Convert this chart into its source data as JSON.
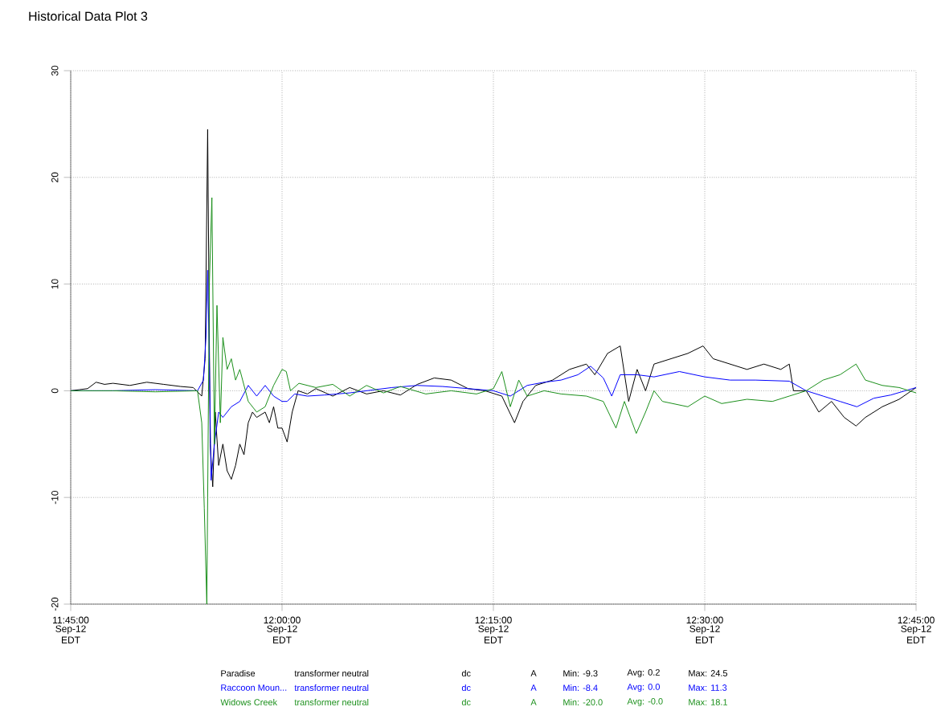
{
  "chart_data": {
    "type": "line",
    "title": "Historical Data Plot 3",
    "xlim": [
      11.75,
      12.75
    ],
    "ylim": [
      -20,
      30
    ],
    "xticks": [
      {
        "value": 11.75,
        "label": "11:45:00"
      },
      {
        "value": 12.0,
        "label": "12:00:00"
      },
      {
        "value": 12.25,
        "label": "12:15:00"
      },
      {
        "value": 12.5,
        "label": "12:30:00"
      },
      {
        "value": 12.75,
        "label": "12:45:00"
      }
    ],
    "yticks": [
      -20,
      -10,
      0,
      10,
      20,
      30
    ],
    "grid": true,
    "legend": "bottom",
    "line_style": "solid",
    "series": [
      {
        "name": "Paradise",
        "color": "#000000",
        "x": [
          11.75,
          11.76,
          11.77,
          11.78,
          11.79,
          11.8,
          11.82,
          11.84,
          11.86,
          11.88,
          11.895,
          11.905,
          11.909,
          11.912,
          11.915,
          11.918,
          11.921,
          11.925,
          11.93,
          11.935,
          11.94,
          11.945,
          11.95,
          11.955,
          11.96,
          11.965,
          11.97,
          11.98,
          11.985,
          11.99,
          11.995,
          12.0,
          12.006,
          12.012,
          12.019,
          12.03,
          12.04,
          12.06,
          12.08,
          12.1,
          12.12,
          12.14,
          12.16,
          12.18,
          12.2,
          12.22,
          12.24,
          12.26,
          12.275,
          12.285,
          12.3,
          12.32,
          12.34,
          12.36,
          12.37,
          12.385,
          12.4,
          12.41,
          12.42,
          12.43,
          12.44,
          12.46,
          12.48,
          12.498,
          12.51,
          12.53,
          12.55,
          12.57,
          12.59,
          12.6,
          12.605,
          12.62,
          12.635,
          12.65,
          12.665,
          12.679,
          12.69,
          12.71,
          12.73,
          12.75
        ],
        "values": [
          0,
          0.1,
          0.2,
          0.8,
          0.6,
          0.7,
          0.5,
          0.8,
          0.6,
          0.4,
          0.3,
          -0.5,
          3,
          24.5,
          -5,
          -9,
          -2,
          -7,
          -5,
          -7.5,
          -8.3,
          -7,
          -5,
          -6,
          -3,
          -2,
          -2.5,
          -2,
          -3,
          -1.5,
          -3.5,
          -3.5,
          -4.8,
          -2,
          0,
          -0.3,
          0.2,
          -0.5,
          0.3,
          -0.3,
          0,
          -0.4,
          0.6,
          1.2,
          1,
          0.2,
          0,
          -0.5,
          -3,
          -1,
          0.5,
          1,
          2,
          2.5,
          1.5,
          3.5,
          4.2,
          -1,
          2,
          0,
          2.5,
          3,
          3.5,
          4.2,
          3,
          2.5,
          2,
          2.5,
          2,
          2.5,
          0,
          0,
          -2,
          -1,
          -2.5,
          -3.3,
          -2.5,
          -1.5,
          -0.8,
          0.3
        ]
      },
      {
        "name": "Raccoon Moun...",
        "color": "#0000ff",
        "x": [
          11.75,
          11.8,
          11.85,
          11.9,
          11.907,
          11.91,
          11.912,
          11.914,
          11.916,
          11.92,
          11.925,
          11.93,
          11.94,
          11.95,
          11.96,
          11.97,
          11.98,
          11.99,
          12.0,
          12.006,
          12.015,
          12.03,
          12.05,
          12.08,
          12.1,
          12.13,
          12.16,
          12.19,
          12.22,
          12.25,
          12.27,
          12.29,
          12.31,
          12.33,
          12.35,
          12.365,
          12.38,
          12.39,
          12.4,
          12.42,
          12.44,
          12.47,
          12.5,
          12.53,
          12.56,
          12.6,
          12.62,
          12.64,
          12.66,
          12.68,
          12.7,
          12.72,
          12.75
        ],
        "values": [
          0,
          0,
          0.1,
          0,
          1,
          5,
          11.3,
          3,
          -8.4,
          -5,
          -2,
          -2.5,
          -1.5,
          -1,
          0.5,
          -0.5,
          0.5,
          -0.5,
          -1,
          -1,
          -0.3,
          -0.5,
          -0.4,
          -0.2,
          0,
          0.3,
          0.5,
          0.4,
          0.2,
          0,
          -0.5,
          0.5,
          0.8,
          1,
          1.5,
          2.3,
          1.2,
          -0.5,
          1.5,
          1.5,
          1.3,
          1.8,
          1.3,
          1,
          1,
          0.9,
          0,
          -0.5,
          -1,
          -1.5,
          -0.7,
          -0.4,
          0.3
        ]
      },
      {
        "name": "Widows Creek",
        "color": "#1a8f1a",
        "x": [
          11.75,
          11.8,
          11.85,
          11.9,
          11.905,
          11.908,
          11.911,
          11.914,
          11.917,
          11.92,
          11.923,
          11.927,
          11.93,
          11.935,
          11.94,
          11.945,
          11.95,
          11.96,
          11.97,
          11.98,
          11.99,
          12.0,
          12.005,
          12.01,
          12.02,
          12.04,
          12.06,
          12.08,
          12.1,
          12.12,
          12.14,
          12.17,
          12.2,
          12.23,
          12.25,
          12.26,
          12.27,
          12.28,
          12.29,
          12.31,
          12.33,
          12.36,
          12.38,
          12.395,
          12.405,
          12.419,
          12.43,
          12.44,
          12.45,
          12.48,
          12.5,
          12.52,
          12.55,
          12.58,
          12.6,
          12.62,
          12.64,
          12.66,
          12.679,
          12.69,
          12.71,
          12.73,
          12.75
        ],
        "values": [
          0,
          0,
          -0.1,
          0,
          -3,
          -11,
          -20,
          10,
          18.1,
          -5,
          8,
          -3,
          5,
          2,
          3,
          1,
          2,
          -1,
          -2,
          -1.5,
          0.5,
          2,
          1.8,
          0,
          0.7,
          0.3,
          0.6,
          -0.5,
          0.5,
          -0.2,
          0.4,
          -0.3,
          0,
          -0.3,
          0.2,
          1.8,
          -1.5,
          1,
          -0.5,
          0,
          -0.3,
          -0.5,
          -1,
          -3.5,
          -1,
          -4,
          -2,
          0,
          -1,
          -1.5,
          -0.5,
          -1.2,
          -0.8,
          -1,
          -0.5,
          0,
          1,
          1.5,
          2.5,
          1,
          0.5,
          0.3,
          -0.2
        ]
      }
    ],
    "annotations": [
      "transformer neutral",
      "dc",
      "A",
      "Min: -9.3",
      "Avg: 0.2",
      "Max: 24.5",
      "transformer neutral",
      "dc",
      "A",
      "Min: -8.4",
      "Avg: 0.0",
      "Max: 11.3",
      "transformer neutral",
      "dc",
      "A",
      "Min: -20.0",
      "Avg: -0.0",
      "Max: 18.1",
      "Sep-12 EDT",
      "Sep-12 EDT",
      "Sep-12 EDT",
      "Sep-12 EDT",
      "Sep-12 EDT"
    ]
  }
}
